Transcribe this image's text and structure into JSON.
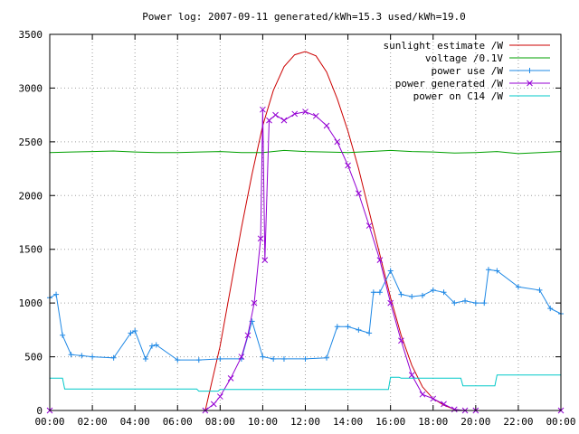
{
  "chart_data": {
    "type": "line",
    "title": "Power log: 2007-09-11 generated/kWh=15.3 used/kWh=19.0",
    "xlabel": "",
    "ylabel": "",
    "xlim": [
      0,
      24
    ],
    "ylim": [
      0,
      3500
    ],
    "x_ticks": [
      "00:00",
      "02:00",
      "04:00",
      "06:00",
      "08:00",
      "10:00",
      "12:00",
      "14:00",
      "16:00",
      "18:00",
      "20:00",
      "22:00",
      "00:00"
    ],
    "y_ticks": [
      0,
      500,
      1000,
      1500,
      2000,
      2500,
      3000,
      3500
    ],
    "grid": true,
    "legend_position": "top-right",
    "series": [
      {
        "name": "sunlight estimate /W",
        "color": "#cc0000",
        "style": "line",
        "x": [
          7.3,
          8.0,
          8.5,
          9.0,
          9.5,
          10.0,
          10.5,
          11.0,
          11.5,
          12.0,
          12.5,
          13.0,
          13.5,
          14.0,
          14.5,
          15.0,
          15.5,
          16.0,
          16.5,
          17.0,
          17.5,
          18.0,
          18.5,
          19.0,
          19.3
        ],
        "y": [
          0,
          600,
          1150,
          1700,
          2200,
          2650,
          2980,
          3200,
          3310,
          3340,
          3300,
          3150,
          2900,
          2600,
          2250,
          1850,
          1450,
          1050,
          700,
          420,
          220,
          110,
          50,
          10,
          0
        ]
      },
      {
        "name": "voltage /0.1V",
        "color": "#00a000",
        "style": "line",
        "x": [
          0,
          1,
          2,
          3,
          4,
          5,
          6,
          7,
          8,
          9,
          10,
          11,
          12,
          13,
          14,
          15,
          16,
          17,
          18,
          19,
          20,
          21,
          22,
          23,
          24
        ],
        "y": [
          2400,
          2405,
          2410,
          2415,
          2405,
          2400,
          2400,
          2405,
          2410,
          2400,
          2400,
          2420,
          2410,
          2405,
          2400,
          2410,
          2420,
          2410,
          2405,
          2395,
          2400,
          2410,
          2390,
          2400,
          2410
        ]
      },
      {
        "name": "power use /W",
        "color": "#1e88e5",
        "style": "line-plus",
        "x": [
          0,
          0.3,
          0.6,
          1.0,
          1.5,
          2.0,
          3.0,
          3.8,
          4.0,
          4.5,
          4.8,
          5.0,
          6.0,
          7.0,
          8.0,
          9.0,
          9.5,
          10.0,
          10.5,
          11.0,
          12.0,
          13.0,
          13.5,
          14.0,
          14.5,
          15.0,
          15.2,
          15.5,
          16.0,
          16.5,
          17.0,
          17.5,
          18.0,
          18.5,
          19.0,
          19.5,
          20.0,
          20.4,
          20.6,
          21.0,
          22.0,
          23.0,
          23.5,
          24.0
        ],
        "y": [
          1050,
          1080,
          700,
          520,
          510,
          500,
          490,
          720,
          740,
          480,
          600,
          610,
          470,
          470,
          480,
          480,
          830,
          500,
          480,
          480,
          480,
          490,
          780,
          780,
          750,
          720,
          1100,
          1100,
          1300,
          1080,
          1060,
          1070,
          1120,
          1100,
          1000,
          1020,
          1000,
          1000,
          1310,
          1300,
          1150,
          1120,
          950,
          900
        ]
      },
      {
        "name": "power generated /W",
        "color": "#9400d3",
        "style": "line-x",
        "x": [
          0,
          7.3,
          7.7,
          8.0,
          8.5,
          9.0,
          9.3,
          9.6,
          9.9,
          10.0,
          10.1,
          10.3,
          10.6,
          11.0,
          11.5,
          12.0,
          12.5,
          13.0,
          13.5,
          14.0,
          14.5,
          15.0,
          15.5,
          16.0,
          16.5,
          17.0,
          17.5,
          18.0,
          18.5,
          19.0,
          19.5,
          20.0,
          24.0
        ],
        "y": [
          0,
          0,
          60,
          130,
          300,
          500,
          700,
          1000,
          1600,
          2800,
          1400,
          2700,
          2750,
          2700,
          2760,
          2780,
          2740,
          2650,
          2500,
          2280,
          2020,
          1720,
          1400,
          1000,
          650,
          330,
          150,
          110,
          60,
          10,
          0,
          0,
          0
        ]
      },
      {
        "name": "power on C14 /W",
        "color": "#00c8c8",
        "style": "line",
        "x": [
          0,
          0.6,
          0.7,
          6.9,
          7.0,
          7.9,
          8.0,
          15.9,
          16.0,
          16.4,
          16.5,
          19.3,
          19.4,
          20.9,
          21.0,
          24.0
        ],
        "y": [
          300,
          300,
          200,
          200,
          180,
          180,
          195,
          195,
          310,
          310,
          300,
          300,
          230,
          230,
          330,
          330
        ]
      }
    ]
  }
}
